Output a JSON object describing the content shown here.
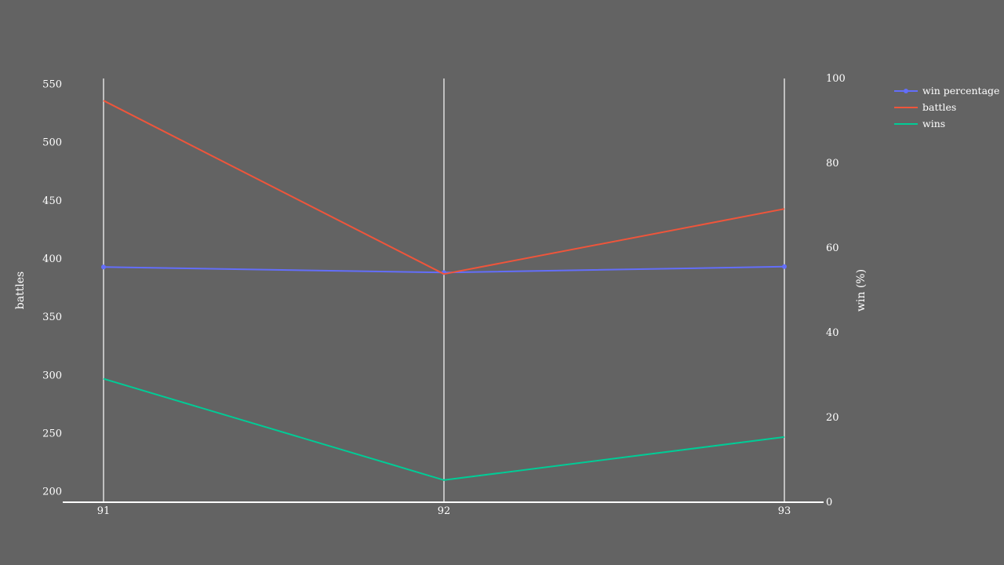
{
  "chart_data": {
    "type": "line",
    "x": [
      91,
      92,
      93
    ],
    "x_tick_labels": [
      "91",
      "92",
      "93"
    ],
    "series": [
      {
        "name": "win percentage",
        "axis": "right",
        "values": [
          55.5,
          54.2,
          55.6
        ],
        "markers": true
      },
      {
        "name": "battles",
        "axis": "left",
        "values": [
          536,
          387,
          443
        ],
        "markers": false
      },
      {
        "name": "wins",
        "axis": "left",
        "values": [
          297,
          210,
          247
        ],
        "markers": false
      }
    ],
    "y_left": {
      "label": "battles",
      "range": [
        191,
        555
      ],
      "ticks": [
        200,
        250,
        300,
        350,
        400,
        450,
        500,
        550
      ]
    },
    "y_right": {
      "label": "win (%)",
      "range": [
        0,
        100
      ],
      "ticks": [
        0,
        20,
        40,
        60,
        80,
        100
      ]
    },
    "legend_position": "top-right",
    "grid": "vertical-only",
    "colors": {
      "background": "#636363",
      "win percentage": "#636efa",
      "battles": "#ef553b",
      "wins": "#00cc96",
      "axis": "#ffffff",
      "text": "#ffffff"
    }
  }
}
